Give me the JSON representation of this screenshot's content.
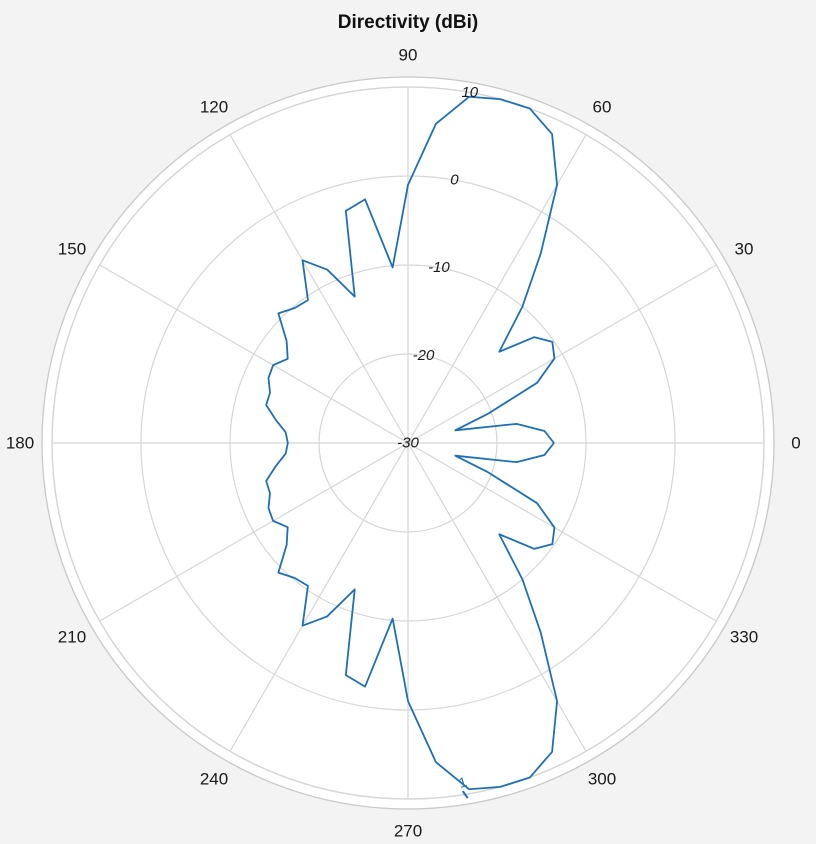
{
  "chart_data": {
    "type": "polar-line",
    "title": "Directivity (dBi)",
    "angle_unit": "degrees",
    "angle_ticks": [
      0,
      30,
      60,
      90,
      120,
      150,
      180,
      210,
      240,
      270,
      300,
      330
    ],
    "angle_tick_labels": [
      "0",
      "30",
      "60",
      "90",
      "120",
      "150",
      "180",
      "210",
      "240",
      "270",
      "300",
      "330"
    ],
    "r_ticks": [
      -30,
      -20,
      -10,
      0,
      10
    ],
    "r_tick_labels": [
      "-30",
      "-20",
      "-10",
      "0",
      "10"
    ],
    "rlim": [
      -30,
      10
    ],
    "r_tick_label_angle": 80,
    "grid": true,
    "series": [
      {
        "color": "#1f6fb5",
        "theta": [
          0,
          5,
          10,
          15,
          20,
          25,
          30,
          35,
          40,
          45,
          50,
          55,
          60,
          65,
          70,
          75,
          80,
          85,
          90,
          95,
          100,
          105,
          110,
          115,
          120,
          125,
          130,
          135,
          140,
          145,
          150,
          155,
          160,
          165,
          170,
          175,
          180,
          185,
          190,
          195,
          200,
          205,
          210,
          215,
          220,
          225,
          230,
          235,
          240,
          245,
          250,
          255,
          260,
          265,
          270,
          275,
          280,
          285,
          290,
          295,
          300,
          305,
          310,
          315,
          320,
          325,
          330,
          335,
          340,
          345,
          350,
          355,
          360
        ],
        "r": [
          -13.6,
          -14.6,
          -17.6,
          -24.5,
          -20.5,
          -14.0,
          -11.0,
          -10.2,
          -11.5,
          -15.5,
          -10.0,
          -4.0,
          3.5,
          8.3,
          10.4,
          10.8,
          9.5,
          6.0,
          -1.0,
          -10.2,
          -2.2,
          -3.0,
          -12.5,
          -8.5,
          -6.3,
          -10.4,
          -10.2,
          -9.4,
          -12.2,
          -13.5,
          -12.5,
          -12.7,
          -13.5,
          -13.5,
          -14.9,
          -16.2,
          -16.5,
          -16.2,
          -14.9,
          -13.5,
          -13.5,
          -12.7,
          -12.5,
          -13.5,
          -12.2,
          -9.4,
          -10.2,
          -10.4,
          -6.3,
          -8.5,
          -12.5,
          -3.0,
          -2.2,
          -10.2,
          -1.0,
          6.0,
          9.5,
          10.8,
          10.4,
          8.3,
          3.5,
          -4.0,
          -10.0,
          -15.5,
          -11.5,
          -10.2,
          -11.0,
          -14.0,
          -20.5,
          -24.5,
          -17.6,
          -14.6,
          -13.6
        ]
      }
    ],
    "annotations": [
      {
        "text": "1",
        "theta": 279.5,
        "r": 10.0
      }
    ]
  }
}
